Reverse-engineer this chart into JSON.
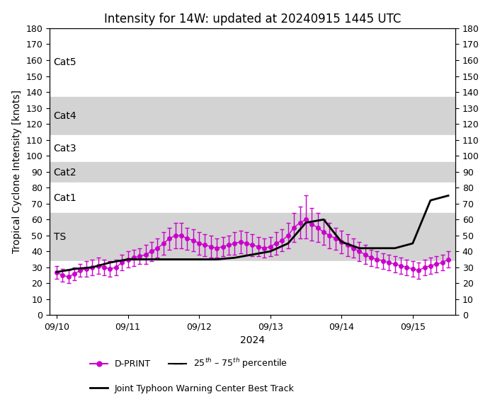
{
  "title": "Intensity for 14W: updated at 20240915 1445 UTC",
  "ylabel": "Tropical Cyclone Intensity [knots]",
  "xlabel": "2024",
  "ylim": [
    0,
    180
  ],
  "yticks": [
    0,
    10,
    20,
    30,
    40,
    50,
    60,
    70,
    80,
    90,
    100,
    110,
    120,
    130,
    140,
    150,
    160,
    170,
    180
  ],
  "category_bands": [
    {
      "label": "Cat5",
      "ymin": 137,
      "ymax": 180,
      "color": "white"
    },
    {
      "label": "Cat4",
      "ymin": 113,
      "ymax": 137,
      "color": "#d3d3d3"
    },
    {
      "label": "Cat3",
      "ymin": 96,
      "ymax": 113,
      "color": "white"
    },
    {
      "label": "Cat2",
      "ymin": 83,
      "ymax": 96,
      "color": "#d3d3d3"
    },
    {
      "label": "Cat1",
      "ymin": 64,
      "ymax": 83,
      "color": "white"
    },
    {
      "label": "TS",
      "ymin": 34,
      "ymax": 64,
      "color": "#d3d3d3"
    },
    {
      "label": "",
      "ymin": 0,
      "ymax": 34,
      "color": "white"
    }
  ],
  "dprint_color": "#cc00cc",
  "jtwc_color": "#000000",
  "dprint_x": [
    0.0,
    0.083,
    0.167,
    0.25,
    0.333,
    0.417,
    0.5,
    0.583,
    0.667,
    0.75,
    0.833,
    0.917,
    1.0,
    1.083,
    1.167,
    1.25,
    1.333,
    1.417,
    1.5,
    1.583,
    1.667,
    1.75,
    1.833,
    1.917,
    2.0,
    2.083,
    2.167,
    2.25,
    2.333,
    2.417,
    2.5,
    2.583,
    2.667,
    2.75,
    2.833,
    2.917,
    3.0,
    3.083,
    3.167,
    3.25,
    3.333,
    3.417,
    3.5,
    3.583,
    3.667,
    3.75,
    3.833,
    3.917,
    4.0,
    4.083,
    4.167,
    4.25,
    4.333,
    4.417,
    4.5,
    4.583,
    4.667,
    4.75,
    4.833,
    4.917,
    5.0,
    5.083,
    5.167,
    5.25,
    5.333,
    5.417,
    5.5
  ],
  "dprint_y": [
    27,
    25,
    24,
    26,
    28,
    29,
    30,
    31,
    30,
    29,
    30,
    33,
    35,
    36,
    37,
    38,
    40,
    42,
    45,
    48,
    50,
    50,
    48,
    47,
    45,
    44,
    43,
    42,
    43,
    44,
    45,
    46,
    45,
    44,
    43,
    42,
    43,
    45,
    47,
    50,
    55,
    58,
    60,
    57,
    55,
    52,
    50,
    48,
    46,
    44,
    42,
    40,
    38,
    36,
    35,
    34,
    33,
    32,
    31,
    30,
    29,
    28,
    30,
    31,
    32,
    33,
    35
  ],
  "dprint_yerr_low": [
    4,
    4,
    4,
    4,
    4,
    5,
    5,
    5,
    5,
    5,
    5,
    5,
    5,
    5,
    5,
    6,
    6,
    6,
    7,
    7,
    8,
    8,
    7,
    7,
    7,
    7,
    7,
    6,
    6,
    6,
    7,
    7,
    7,
    7,
    6,
    6,
    6,
    7,
    7,
    8,
    9,
    10,
    12,
    10,
    9,
    8,
    8,
    7,
    7,
    7,
    6,
    6,
    6,
    5,
    5,
    5,
    5,
    5,
    5,
    5,
    5,
    5,
    5,
    5,
    5,
    5,
    5
  ],
  "dprint_yerr_high": [
    4,
    4,
    4,
    4,
    4,
    5,
    5,
    5,
    5,
    5,
    5,
    5,
    5,
    5,
    5,
    6,
    6,
    6,
    7,
    7,
    8,
    8,
    7,
    7,
    7,
    7,
    7,
    6,
    6,
    6,
    7,
    7,
    7,
    7,
    6,
    6,
    6,
    7,
    7,
    8,
    9,
    10,
    15,
    10,
    9,
    8,
    8,
    7,
    7,
    7,
    6,
    6,
    6,
    5,
    5,
    5,
    5,
    5,
    5,
    5,
    5,
    5,
    5,
    5,
    5,
    5,
    5
  ],
  "jtwc_x": [
    0.0,
    0.25,
    0.5,
    0.75,
    1.0,
    1.25,
    1.5,
    1.75,
    2.0,
    2.25,
    2.5,
    2.75,
    3.0,
    3.25,
    3.5,
    3.75,
    4.0,
    4.25,
    4.5,
    4.75,
    5.0,
    5.25,
    5.5
  ],
  "jtwc_y": [
    27,
    29,
    30,
    33,
    35,
    35,
    35,
    35,
    35,
    35,
    36,
    38,
    40,
    45,
    58,
    60,
    46,
    42,
    42,
    42,
    45,
    72,
    75
  ],
  "xtick_positions": [
    0,
    1,
    2,
    3,
    4,
    5
  ],
  "xtick_labels": [
    "09/10",
    "09/11",
    "09/12",
    "09/13",
    "09/14",
    "09/15"
  ]
}
